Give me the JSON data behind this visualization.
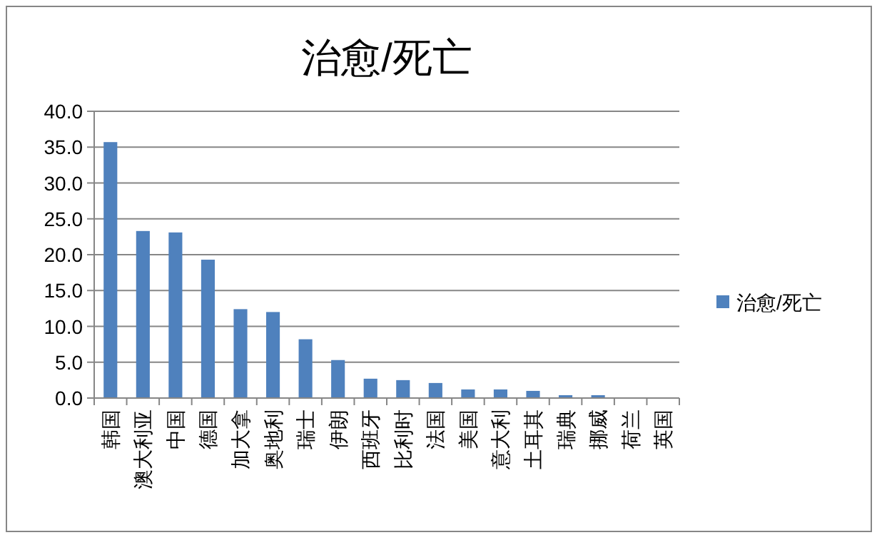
{
  "chart_data": {
    "type": "bar",
    "title": "治愈/死亡",
    "categories": [
      "韩国",
      "澳大利亚",
      "中国",
      "德国",
      "加大拿",
      "奥地利",
      "瑞士",
      "伊朗",
      "西班牙",
      "比利时",
      "法国",
      "美国",
      "意大利",
      "土耳其",
      "瑞典",
      "挪威",
      "荷兰",
      "英国"
    ],
    "series": [
      {
        "name": "治愈/死亡",
        "color": "#4f81bd",
        "values": [
          35.7,
          23.3,
          23.1,
          19.3,
          12.4,
          12.0,
          8.2,
          5.3,
          2.7,
          2.5,
          2.1,
          1.2,
          1.2,
          1.0,
          0.4,
          0.4,
          0,
          0
        ]
      }
    ],
    "ylim": [
      0,
      40
    ],
    "yticks": [
      {
        "value": 0,
        "label": "0.0"
      },
      {
        "value": 5,
        "label": "5.0"
      },
      {
        "value": 10,
        "label": "10.0"
      },
      {
        "value": 15,
        "label": "15.0"
      },
      {
        "value": 20,
        "label": "20.0"
      },
      {
        "value": 25,
        "label": "25.0"
      },
      {
        "value": 30,
        "label": "30.0"
      },
      {
        "value": 35,
        "label": "35.0"
      },
      {
        "value": 40,
        "label": "40.0"
      }
    ],
    "grid": "y",
    "legend": "right"
  }
}
